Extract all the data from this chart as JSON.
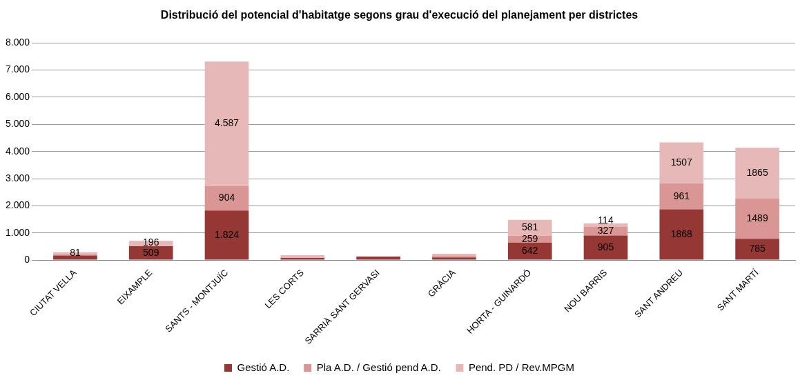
{
  "chart_data": {
    "type": "bar",
    "stacked": true,
    "title": "Distribució del potencial d'habitatge segons grau d'execució del planejament per districtes",
    "categories": [
      "CIUTAT VELLA",
      "EIXAMPLE",
      "SANTS - MONTJUÏC",
      "LES CORTS",
      "SARRIÀ SANT GERVASI",
      "GRÀCIA",
      "HORTA - GUINARDÓ",
      "NOU BARRIS",
      "SANT ANDREU",
      "SANT MARTÍ"
    ],
    "series": [
      {
        "name": "Gestió A.D.",
        "color": "#953735",
        "values": [
          170,
          509,
          1824,
          80,
          130,
          100,
          642,
          905,
          1868,
          785
        ],
        "value_labels": [
          null,
          "509",
          "1.824",
          null,
          null,
          null,
          "642",
          "905",
          "1868",
          "785"
        ]
      },
      {
        "name": "Pla A.D. / Gestió pend A.D.",
        "color": "#d99694",
        "values": [
          40,
          null,
          904,
          null,
          null,
          50,
          259,
          327,
          961,
          1489
        ],
        "value_labels": [
          null,
          null,
          "904",
          null,
          null,
          null,
          "259",
          "327",
          "961",
          "1489"
        ]
      },
      {
        "name": "Pend. PD / Rev.MPGM",
        "color": "#e6b9b8",
        "values": [
          81,
          196,
          4587,
          100,
          null,
          80,
          581,
          114,
          1507,
          1865
        ],
        "value_labels": [
          "81",
          "196",
          "4.587",
          null,
          null,
          null,
          "581",
          "114",
          "1507",
          "1865"
        ]
      }
    ],
    "ylim": [
      0,
      8000
    ],
    "yticks": [
      {
        "value": 0,
        "label": "0"
      },
      {
        "value": 1000,
        "label": "1.000"
      },
      {
        "value": 2000,
        "label": "2.000"
      },
      {
        "value": 3000,
        "label": "3.000"
      },
      {
        "value": 4000,
        "label": "4.000"
      },
      {
        "value": 5000,
        "label": "5.000"
      },
      {
        "value": 6000,
        "label": "6.000"
      },
      {
        "value": 7000,
        "label": "7.000"
      },
      {
        "value": 8000,
        "label": "8.000"
      }
    ],
    "grid": "y",
    "legend": "bottom"
  }
}
